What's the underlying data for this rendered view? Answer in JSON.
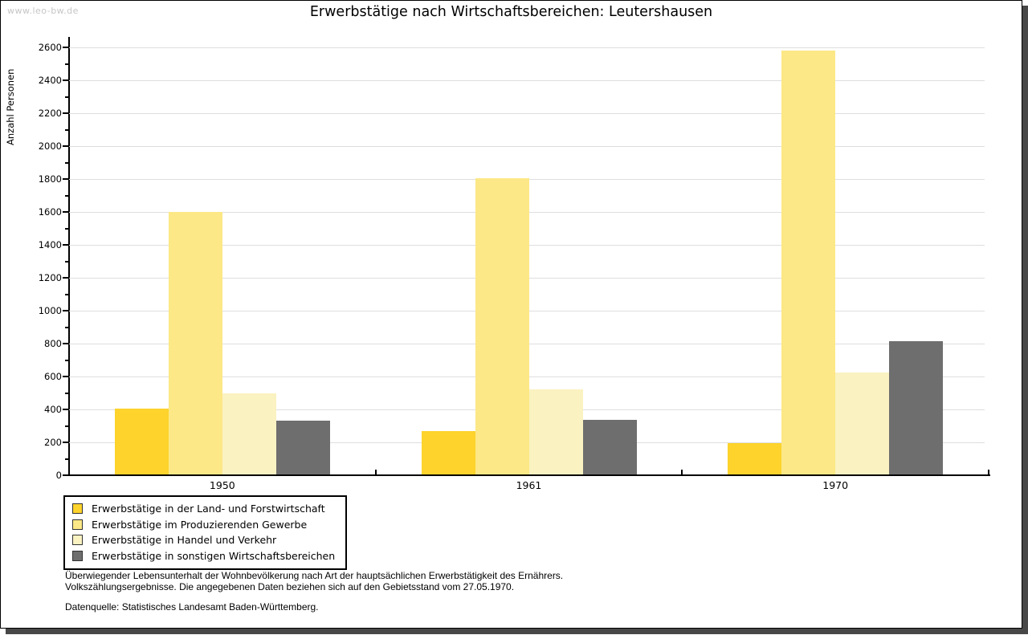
{
  "page": {
    "watermark": "www.leo-bw.de",
    "title": "Erwerbstätige nach Wirtschaftsbereichen: Leutershausen"
  },
  "chart_data": {
    "type": "bar",
    "title": "Erwerbstätige nach Wirtschaftsbereichen: Leutershausen",
    "xlabel": "",
    "ylabel": "Anzahl Personen",
    "ylim": [
      0,
      2600
    ],
    "ytick_step": 200,
    "yminor_step": 100,
    "grid": true,
    "legend_position": "bottom-left",
    "categories": [
      "1950",
      "1961",
      "1970"
    ],
    "series": [
      {
        "name": "Erwerbstätige in der Land- und Forstwirtschaft",
        "color": "#fdd32c",
        "values": [
          405,
          268,
          195
        ]
      },
      {
        "name": "Erwerbstätige im Produzierenden Gewerbe",
        "color": "#fce886",
        "values": [
          1600,
          1806,
          2580
        ]
      },
      {
        "name": "Erwerbstätige in Handel und Verkehr",
        "color": "#fbf2c2",
        "values": [
          500,
          522,
          624
        ]
      },
      {
        "name": "Erwerbstätige in sonstigen Wirtschaftsbereichen",
        "color": "#6e6e6e",
        "values": [
          333,
          338,
          816
        ]
      }
    ]
  },
  "footer": {
    "note_line1": "Überwiegender Lebensunterhalt der Wohnbevölkerung nach Art der hauptsächlichen Erwerbstätigkeit des Ernährers.",
    "note_line2": "Volkszählungsergebnisse. Die angegebenen Daten beziehen sich auf den Gebietsstand vom 27.05.1970.",
    "source": "Datenquelle: Statistisches Landesamt Baden-Württemberg."
  }
}
